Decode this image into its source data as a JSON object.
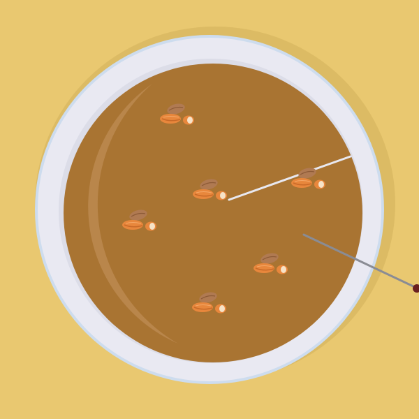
{
  "scene": {
    "background_color": "#e9c870",
    "bowl": {
      "shadow_color": "#c9a955",
      "rim_color": "#e9e9f2",
      "rim_edge_color": "#c8d8ec",
      "inner_rim_color": "#d9dae6",
      "soup_color": "#a97432",
      "soup_highlight_color": "#c79660"
    },
    "almond_clusters": 6,
    "almond_colors": {
      "peeled": "#e8873c",
      "peeled_shade": "#c96a28",
      "skin": "#b07a52",
      "skin_shade": "#8c5a36",
      "cut": "#f6e3c8"
    },
    "utensils": [
      {
        "name": "white-stick",
        "color": "#e8e8f0"
      },
      {
        "name": "dark-skewer",
        "color": "#8a8c94",
        "tip_color": "#6a2020"
      }
    ]
  }
}
